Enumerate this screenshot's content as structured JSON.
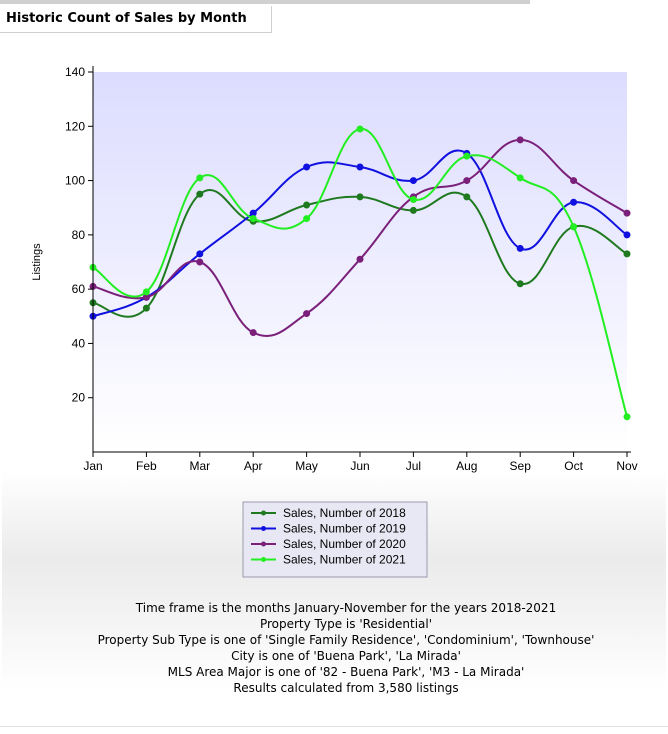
{
  "header": {
    "title": "Historic Count of Sales by Month"
  },
  "chart_data": {
    "type": "line",
    "title": "",
    "xlabel": "",
    "ylabel": "Listings",
    "categories": [
      "Jan",
      "Feb",
      "Mar",
      "Apr",
      "May",
      "Jun",
      "Jul",
      "Aug",
      "Sep",
      "Oct",
      "Nov"
    ],
    "yticks": [
      20,
      40,
      60,
      80,
      100,
      120,
      140
    ],
    "ylim": [
      0,
      140
    ],
    "grid": false,
    "legend_position": "bottom",
    "series": [
      {
        "name": "Sales, Number of 2018",
        "color": "#1f7a1f",
        "values": [
          55,
          53,
          95,
          85,
          91,
          94,
          89,
          94,
          62,
          83,
          73
        ]
      },
      {
        "name": "Sales, Number of 2019",
        "color": "#1010e0",
        "values": [
          50,
          57,
          73,
          88,
          105,
          105,
          100,
          110,
          75,
          92,
          80
        ]
      },
      {
        "name": "Sales, Number of 2020",
        "color": "#7a1f7a",
        "values": [
          61,
          57,
          70,
          44,
          51,
          71,
          94,
          100,
          115,
          100,
          88
        ]
      },
      {
        "name": "Sales, Number of 2021",
        "color": "#22ee22",
        "values": [
          68,
          59,
          101,
          86,
          86,
          119,
          93,
          109,
          101,
          83,
          13
        ]
      }
    ]
  },
  "footer": {
    "lines": [
      "Time frame is the months January-November for the years 2018-2021",
      "Property Type is 'Residential'",
      "Property Sub Type is one of 'Single Family Residence', 'Condominium', 'Townhouse'",
      "City is one of 'Buena Park', 'La Mirada'",
      "MLS Area Major is one of '82 - Buena Park', 'M3 - La Mirada'",
      "Results calculated from 3,580 listings"
    ]
  }
}
